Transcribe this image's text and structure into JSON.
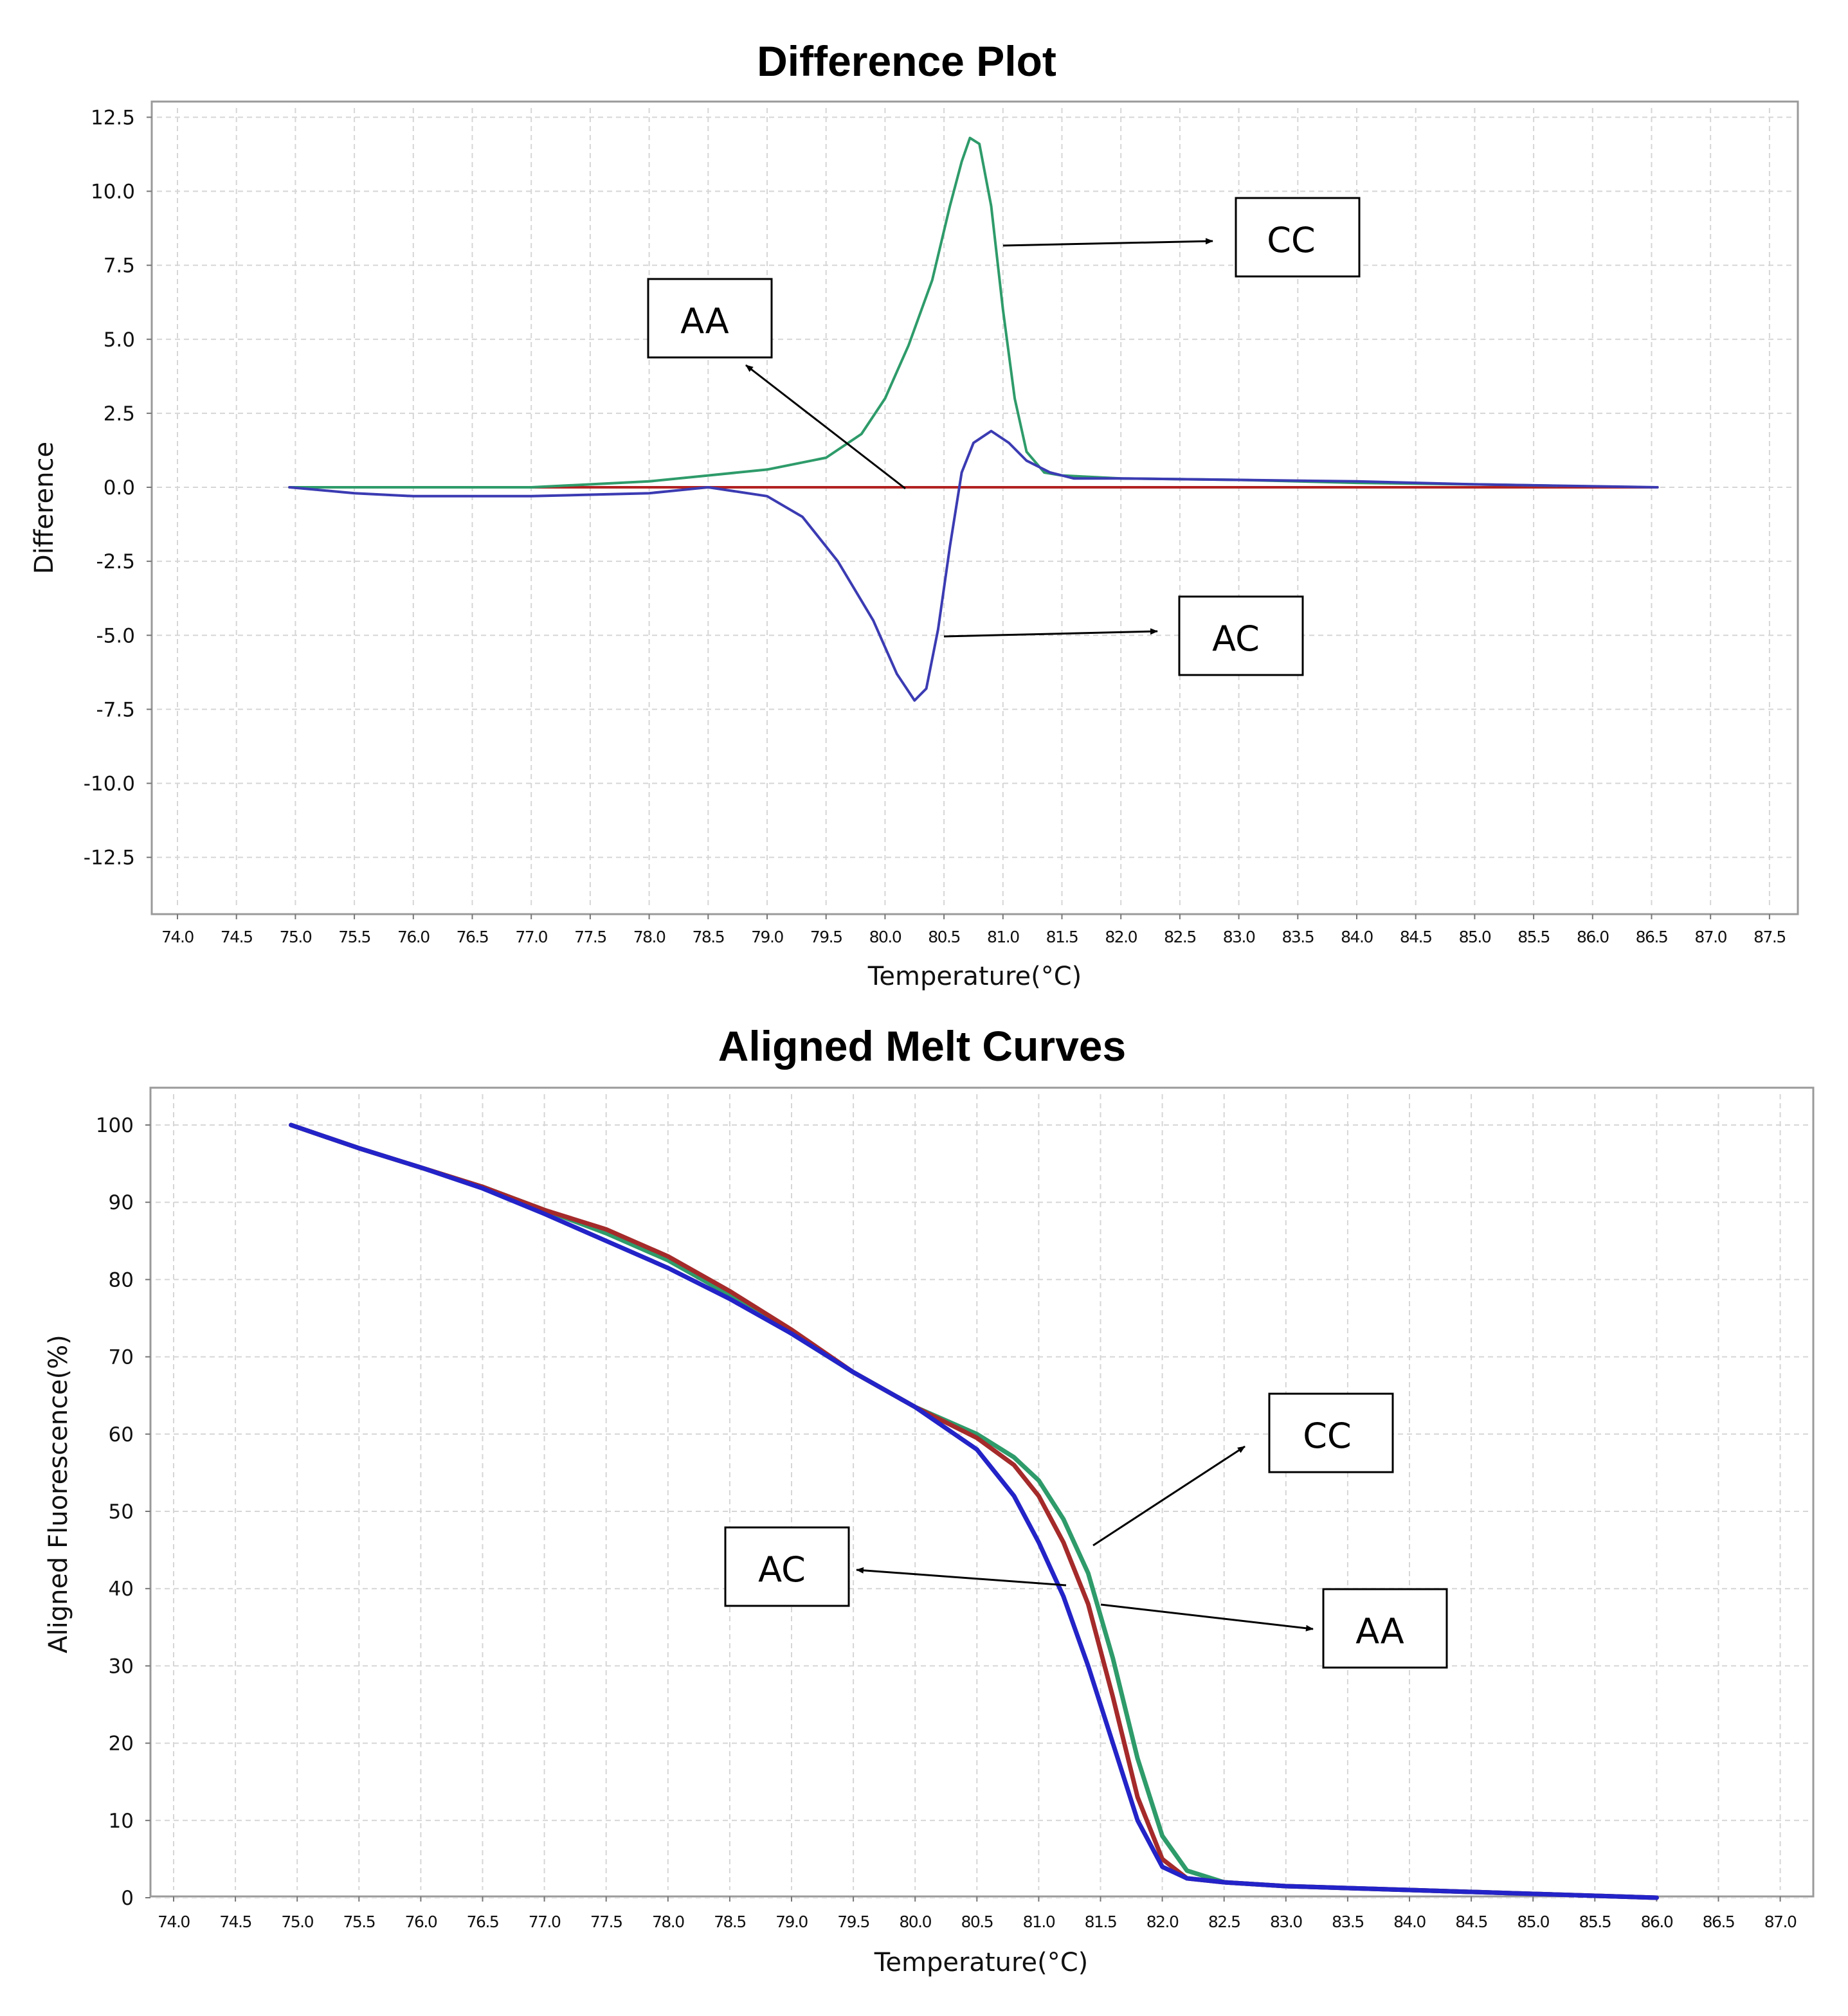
{
  "chart_data": [
    {
      "type": "line",
      "title": "Difference Plot",
      "xlabel": "Temperature(°C)",
      "ylabel": "Difference",
      "xlim": [
        73.8,
        87.75
      ],
      "ylim": [
        -14.5,
        13.0
      ],
      "xticks": [
        "74.0",
        "74.5",
        "75.0",
        "75.5",
        "76.0",
        "76.5",
        "77.0",
        "77.5",
        "78.0",
        "78.5",
        "79.0",
        "79.5",
        "80.0",
        "80.5",
        "81.0",
        "81.5",
        "82.0",
        "82.5",
        "83.0",
        "83.5",
        "84.0",
        "84.5",
        "85.0",
        "85.5",
        "86.0",
        "86.5",
        "87.0",
        "87.5"
      ],
      "yticks": [
        "12.5",
        "10.0",
        "7.5",
        "5.0",
        "2.5",
        "0.0",
        "-2.5",
        "-5.0",
        "-7.5",
        "-10.0",
        "-12.5"
      ],
      "grid": true,
      "series": [
        {
          "name": "AA",
          "color": "#b22222",
          "x": [
            74.95,
            86.55
          ],
          "y": [
            0.0,
            0.0
          ]
        },
        {
          "name": "CC",
          "color": "#2e9b6a",
          "x": [
            74.95,
            77.0,
            78.0,
            78.5,
            79.0,
            79.5,
            79.8,
            80.0,
            80.2,
            80.4,
            80.55,
            80.65,
            80.72,
            80.8,
            80.9,
            81.0,
            81.1,
            81.2,
            81.35,
            81.5,
            82.0,
            83.0,
            84.0,
            85.0,
            85.7
          ],
          "y": [
            0.0,
            0.0,
            0.2,
            0.4,
            0.6,
            1.0,
            1.8,
            3.0,
            4.8,
            7.0,
            9.5,
            11.0,
            11.8,
            11.6,
            9.5,
            6.0,
            3.0,
            1.2,
            0.5,
            0.4,
            0.3,
            0.25,
            0.15,
            0.1,
            0.05
          ]
        },
        {
          "name": "AC",
          "color": "#3b3bb3",
          "x": [
            74.95,
            75.5,
            76.0,
            77.0,
            78.0,
            78.5,
            79.0,
            79.3,
            79.6,
            79.9,
            80.1,
            80.25,
            80.35,
            80.45,
            80.55,
            80.65,
            80.75,
            80.9,
            81.05,
            81.2,
            81.4,
            81.6,
            82.0,
            83.0,
            84.0,
            85.0,
            86.55
          ],
          "y": [
            0.0,
            -0.2,
            -0.3,
            -0.3,
            -0.2,
            0.0,
            -0.3,
            -1.0,
            -2.5,
            -4.5,
            -6.3,
            -7.2,
            -6.8,
            -4.8,
            -2.0,
            0.5,
            1.5,
            1.9,
            1.5,
            0.9,
            0.5,
            0.3,
            0.3,
            0.25,
            0.2,
            0.1,
            0.0
          ]
        }
      ],
      "annotations": [
        "CC",
        "AA",
        "AC"
      ]
    },
    {
      "type": "line",
      "title": "Aligned Melt Curves",
      "xlabel": "Temperature(°C)",
      "ylabel": "Aligned Fluorescence(%)",
      "xlim": [
        73.8,
        87.3
      ],
      "ylim": [
        0,
        105
      ],
      "xticks": [
        "74.0",
        "74.5",
        "75.0",
        "75.5",
        "76.0",
        "76.5",
        "77.0",
        "77.5",
        "78.0",
        "78.5",
        "79.0",
        "79.5",
        "80.0",
        "80.5",
        "81.0",
        "81.5",
        "82.0",
        "82.5",
        "83.0",
        "83.5",
        "84.0",
        "84.5",
        "85.0",
        "85.5",
        "86.0",
        "86.5",
        "87.0"
      ],
      "yticks": [
        "100",
        "90",
        "80",
        "70",
        "60",
        "50",
        "40",
        "30",
        "20",
        "10",
        "0"
      ],
      "grid": true,
      "series": [
        {
          "name": "CC",
          "color": "#2e9b6a",
          "x": [
            74.95,
            75.5,
            76.0,
            76.5,
            77.0,
            77.5,
            78.0,
            78.5,
            79.0,
            79.5,
            80.0,
            80.5,
            80.8,
            81.0,
            81.2,
            81.4,
            81.6,
            81.8,
            82.0,
            82.2,
            82.5,
            83.0,
            84.0,
            85.0,
            86.0
          ],
          "y": [
            100,
            97,
            94.5,
            92,
            89,
            86,
            82.5,
            78,
            73,
            68,
            63.5,
            60,
            57,
            54,
            49,
            42,
            31,
            18,
            8,
            3.5,
            2,
            1.5,
            1,
            0.5,
            0
          ]
        },
        {
          "name": "AA",
          "color": "#a52a2a",
          "x": [
            74.95,
            75.5,
            76.0,
            76.5,
            77.0,
            77.5,
            78.0,
            78.5,
            79.0,
            79.5,
            80.0,
            80.5,
            80.8,
            81.0,
            81.2,
            81.4,
            81.6,
            81.8,
            82.0,
            82.2,
            82.5,
            83.0,
            84.0,
            85.0,
            86.0
          ],
          "y": [
            100,
            97,
            94.5,
            92,
            89,
            86.5,
            83,
            78.5,
            73.5,
            68,
            63.5,
            59.5,
            56,
            52,
            46,
            38,
            26,
            13,
            5,
            2.5,
            2,
            1.5,
            1,
            0.5,
            0
          ]
        },
        {
          "name": "AC",
          "color": "#2323c8",
          "x": [
            74.95,
            75.5,
            76.0,
            76.5,
            77.0,
            77.5,
            78.0,
            78.5,
            79.0,
            79.5,
            80.0,
            80.5,
            80.8,
            81.0,
            81.2,
            81.4,
            81.6,
            81.8,
            82.0,
            82.2,
            82.5,
            83.0,
            84.0,
            85.0,
            86.0
          ],
          "y": [
            100,
            97,
            94.5,
            91.8,
            88.5,
            85,
            81.5,
            77.5,
            73,
            68,
            63.5,
            58,
            52,
            46,
            39,
            30,
            20,
            10,
            4,
            2.5,
            2,
            1.5,
            1,
            0.5,
            0
          ]
        }
      ],
      "annotations": [
        "CC",
        "AC",
        "AA"
      ]
    }
  ]
}
